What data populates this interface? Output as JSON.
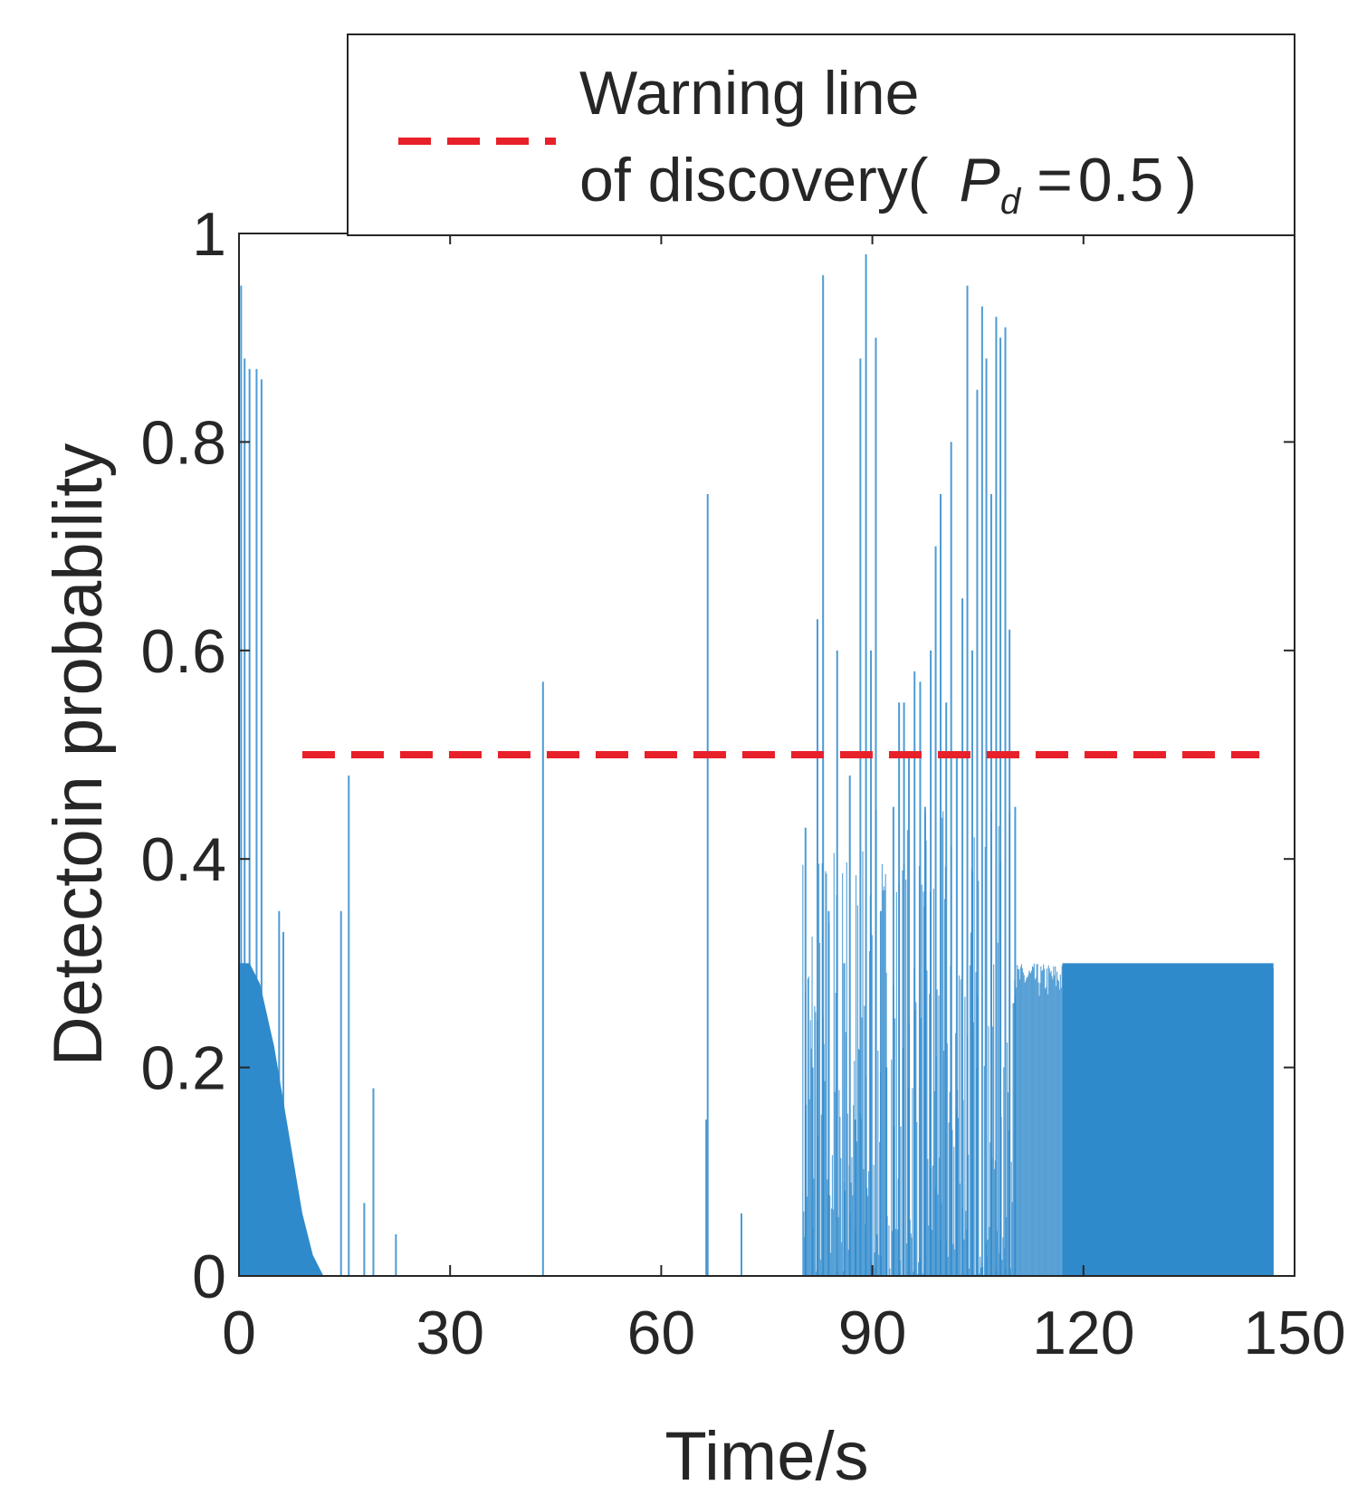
{
  "chart_data": {
    "type": "bar",
    "title": "",
    "xlabel": "Time/s",
    "ylabel": "Detectoin probability",
    "xlim": [
      0,
      150
    ],
    "ylim": [
      0,
      1
    ],
    "xticks": [
      "0",
      "30",
      "60",
      "90",
      "120",
      "150"
    ],
    "yticks": [
      "0",
      "0.2",
      "0.4",
      "0.6",
      "0.8",
      "1"
    ],
    "grid": false,
    "legend": {
      "position": "top-right-outside",
      "line1": "Warning line",
      "line2_prefix": "of discovery(",
      "symbol": "P",
      "subscript": "d",
      "equals": "=",
      "value_text": "0.5",
      "close": ")"
    },
    "threshold": {
      "name": "Warning line of discovery",
      "value": 0.5,
      "color": "#e8202a",
      "xrange": [
        9,
        145
      ]
    },
    "series": [
      {
        "name": "Detection probability",
        "color": "#2f8acc",
        "envelope": [
          [
            0,
            0.3
          ],
          [
            1.5,
            0.3
          ],
          [
            3,
            0.28
          ],
          [
            5,
            0.22
          ],
          [
            7,
            0.14
          ],
          [
            9,
            0.06
          ],
          [
            10.5,
            0.02
          ],
          [
            12,
            0.0
          ]
        ],
        "bursts": [
          {
            "x": [
              80,
              110
            ],
            "low": 0.0,
            "high": 0.45
          },
          {
            "x": [
              110,
              147
            ],
            "low": 0.26,
            "high": 0.3
          }
        ],
        "plateau": {
          "x": [
            117,
            147
          ],
          "value": 0.3
        },
        "spikes": [
          [
            0.3,
            0.95
          ],
          [
            0.8,
            0.88
          ],
          [
            1.5,
            0.87
          ],
          [
            2.5,
            0.87
          ],
          [
            3.2,
            0.86
          ],
          [
            5.7,
            0.35
          ],
          [
            6.3,
            0.33
          ],
          [
            14.5,
            0.35
          ],
          [
            15.6,
            0.48
          ],
          [
            17.8,
            0.07
          ],
          [
            19.1,
            0.18
          ],
          [
            22.3,
            0.04
          ],
          [
            43.2,
            0.57
          ],
          [
            66.6,
            0.75
          ],
          [
            66.4,
            0.15
          ],
          [
            71.4,
            0.06
          ],
          [
            80.5,
            0.43
          ],
          [
            81.5,
            0.2
          ],
          [
            82.2,
            0.63
          ],
          [
            83.0,
            0.96
          ],
          [
            83.8,
            0.35
          ],
          [
            85.0,
            0.6
          ],
          [
            86.0,
            0.3
          ],
          [
            86.8,
            0.48
          ],
          [
            87.6,
            0.15
          ],
          [
            88.3,
            0.88
          ],
          [
            89.1,
            0.98
          ],
          [
            89.8,
            0.6
          ],
          [
            90.5,
            0.9
          ],
          [
            91.2,
            0.35
          ],
          [
            92.0,
            0.2
          ],
          [
            93.0,
            0.45
          ],
          [
            93.8,
            0.55
          ],
          [
            94.5,
            0.55
          ],
          [
            95.2,
            0.5
          ],
          [
            96.0,
            0.58
          ],
          [
            96.8,
            0.57
          ],
          [
            97.5,
            0.45
          ],
          [
            98.3,
            0.6
          ],
          [
            99.0,
            0.7
          ],
          [
            99.7,
            0.75
          ],
          [
            100.5,
            0.55
          ],
          [
            101.2,
            0.8
          ],
          [
            102.0,
            0.5
          ],
          [
            102.8,
            0.65
          ],
          [
            103.5,
            0.95
          ],
          [
            104.2,
            0.6
          ],
          [
            104.9,
            0.85
          ],
          [
            105.6,
            0.93
          ],
          [
            106.2,
            0.88
          ],
          [
            106.9,
            0.75
          ],
          [
            107.6,
            0.92
          ],
          [
            108.2,
            0.9
          ],
          [
            108.9,
            0.91
          ],
          [
            109.5,
            0.62
          ],
          [
            110.3,
            0.45
          ]
        ]
      }
    ]
  }
}
